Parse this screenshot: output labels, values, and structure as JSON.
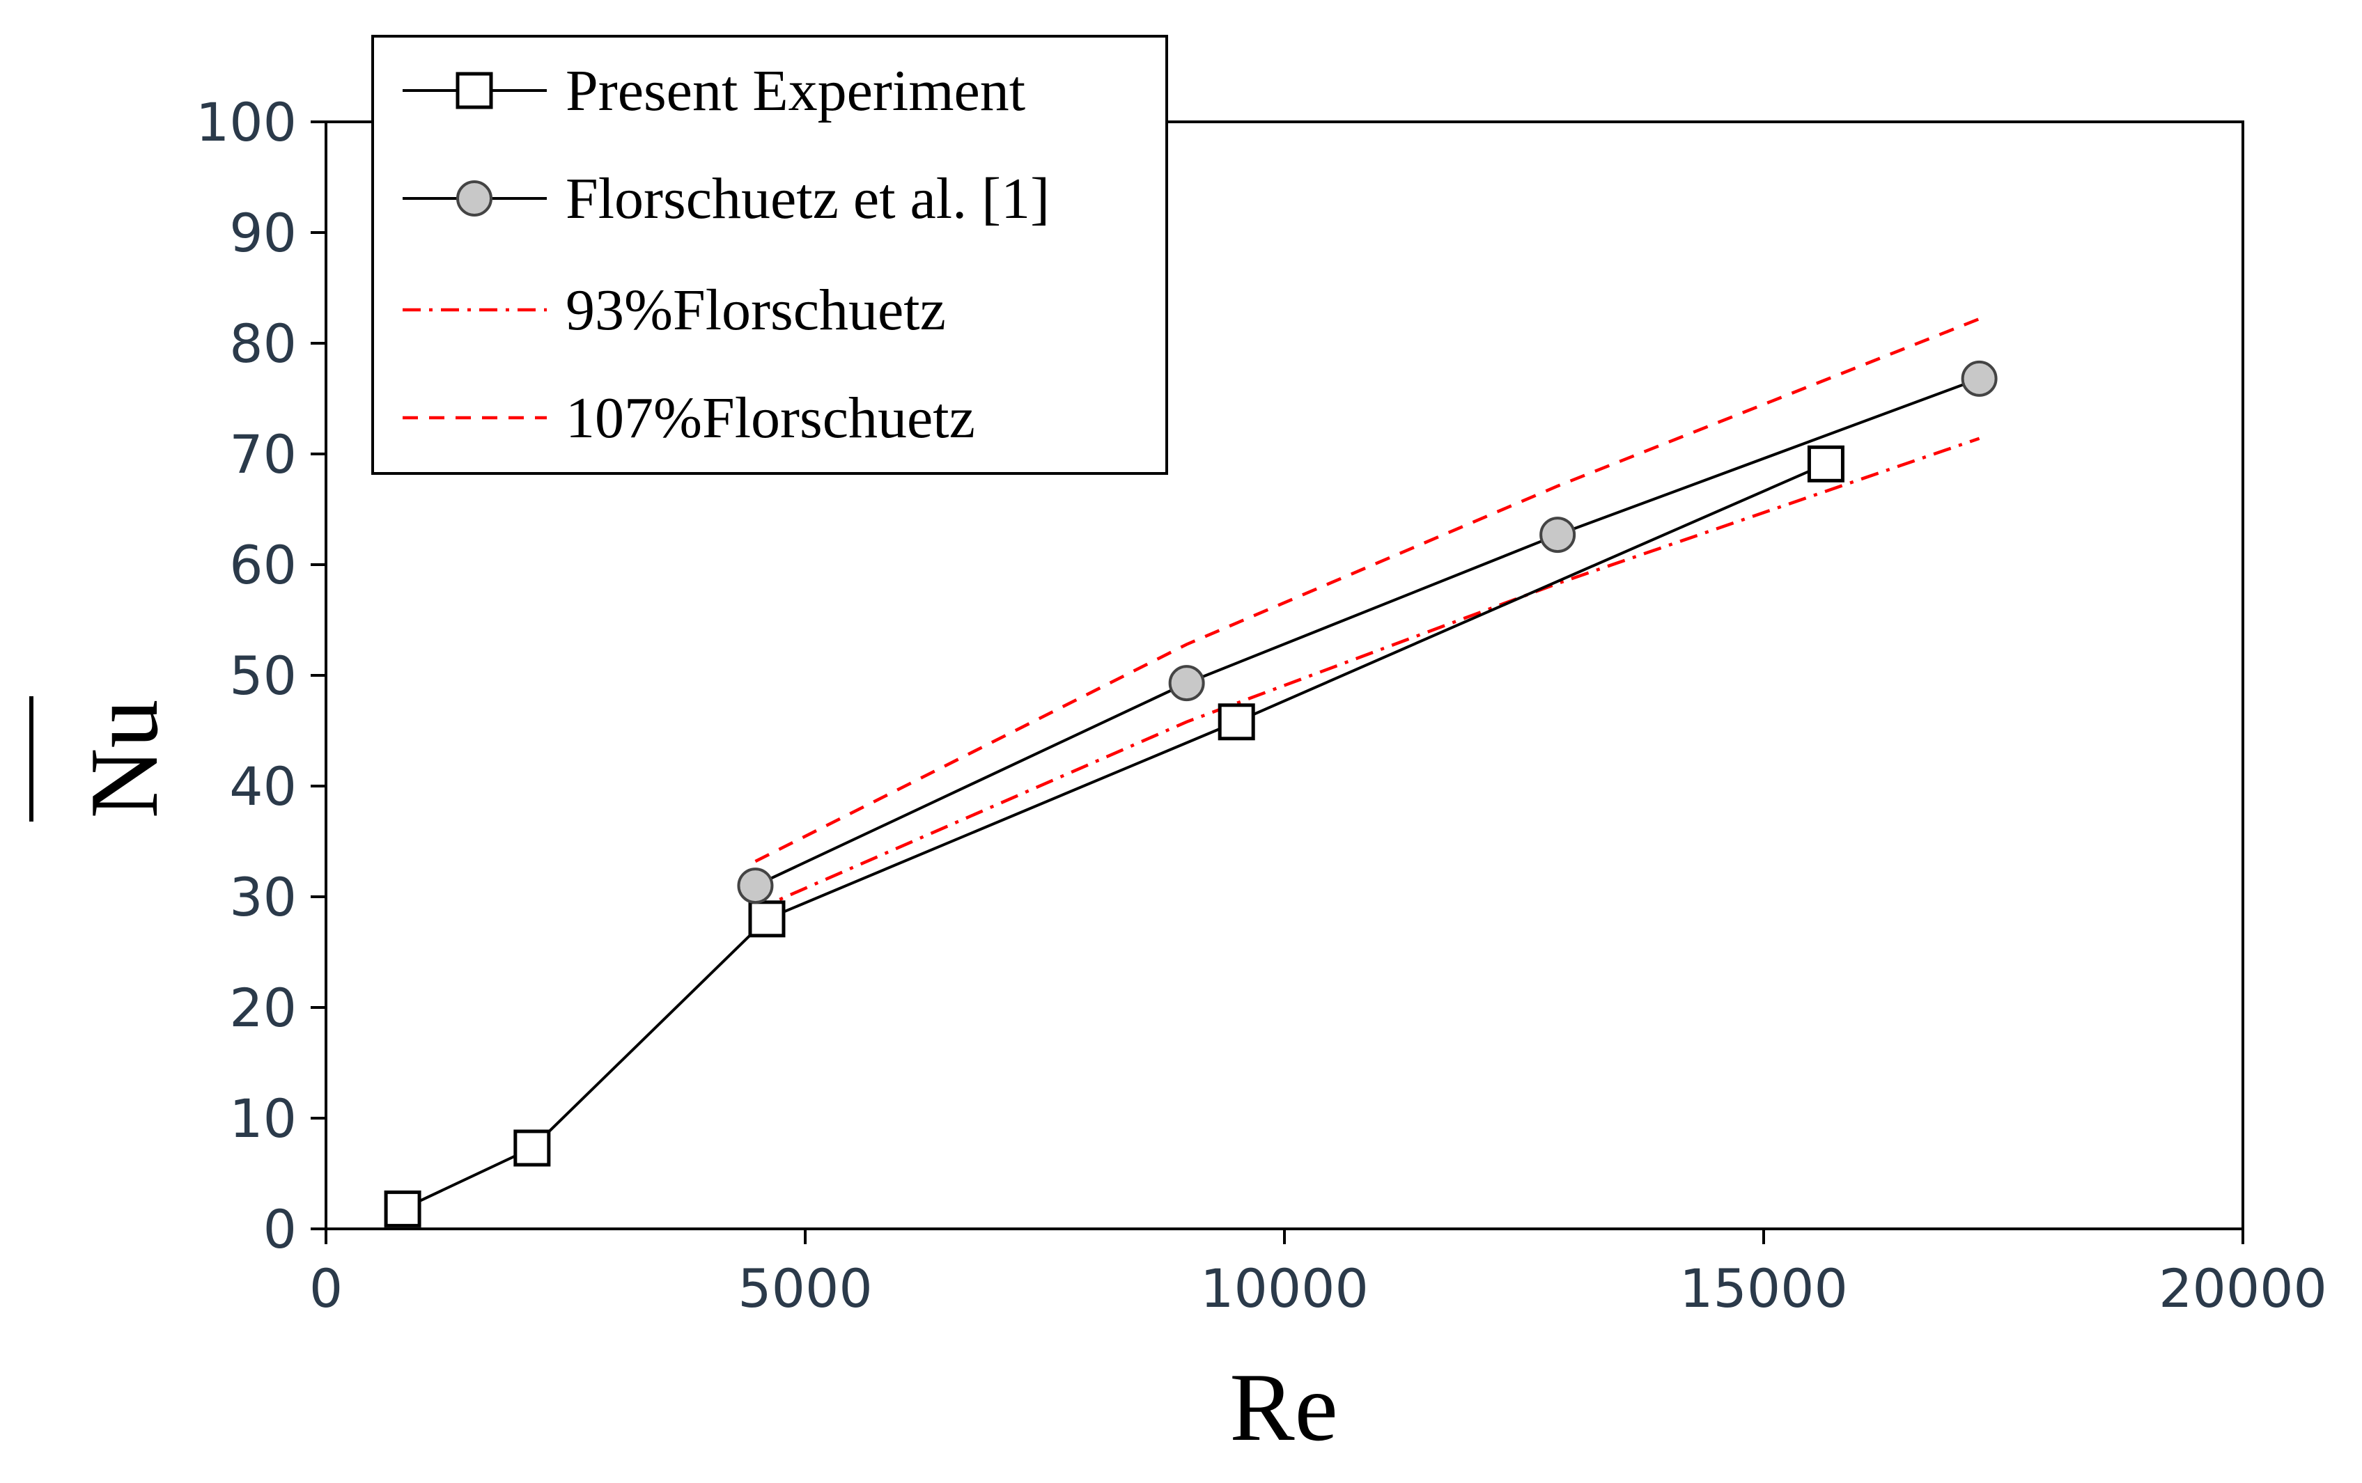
{
  "chart_data": {
    "type": "line",
    "title": "",
    "xlabel": "Re",
    "ylabel": "Nu",
    "ylabel_overline": true,
    "xlim": [
      0,
      20000
    ],
    "ylim": [
      0,
      100
    ],
    "x_ticks": [
      0,
      5000,
      10000,
      15000,
      20000
    ],
    "x_tick_labels": [
      "0",
      "5000",
      "10000",
      "15000",
      "20000"
    ],
    "y_ticks": [
      0,
      10,
      20,
      30,
      40,
      50,
      60,
      70,
      80,
      90,
      100
    ],
    "y_tick_labels": [
      "0",
      "10",
      "20",
      "30",
      "40",
      "50",
      "60",
      "70",
      "80",
      "90",
      "100"
    ],
    "grid": false,
    "legend_position": "top-left",
    "series": [
      {
        "name": "Present Experiment",
        "marker": "square",
        "line_style": "solid",
        "color": "#000000",
        "x": [
          800,
          2150,
          4600,
          9500,
          15650
        ],
        "y": [
          1.8,
          7.3,
          28.0,
          45.8,
          69.1
        ]
      },
      {
        "name": "Florschuetz et al. [1]",
        "marker": "circle",
        "line_style": "solid",
        "color": "#000000",
        "marker_fill": "#c8c8c8",
        "x": [
          4480,
          8980,
          12850,
          17250
        ],
        "y": [
          31.0,
          49.3,
          62.7,
          76.8
        ]
      },
      {
        "name": "93%Florschuetz",
        "marker": "none",
        "line_style": "dashdot",
        "color": "#ff0000",
        "x": [
          4480,
          8980,
          12850,
          17250
        ],
        "y": [
          28.8,
          45.8,
          58.3,
          71.4
        ]
      },
      {
        "name": "107%Florschuetz",
        "marker": "none",
        "line_style": "dashed",
        "color": "#ff0000",
        "x": [
          4480,
          8980,
          12850,
          17250
        ],
        "y": [
          33.2,
          52.8,
          67.1,
          82.2
        ]
      }
    ]
  }
}
